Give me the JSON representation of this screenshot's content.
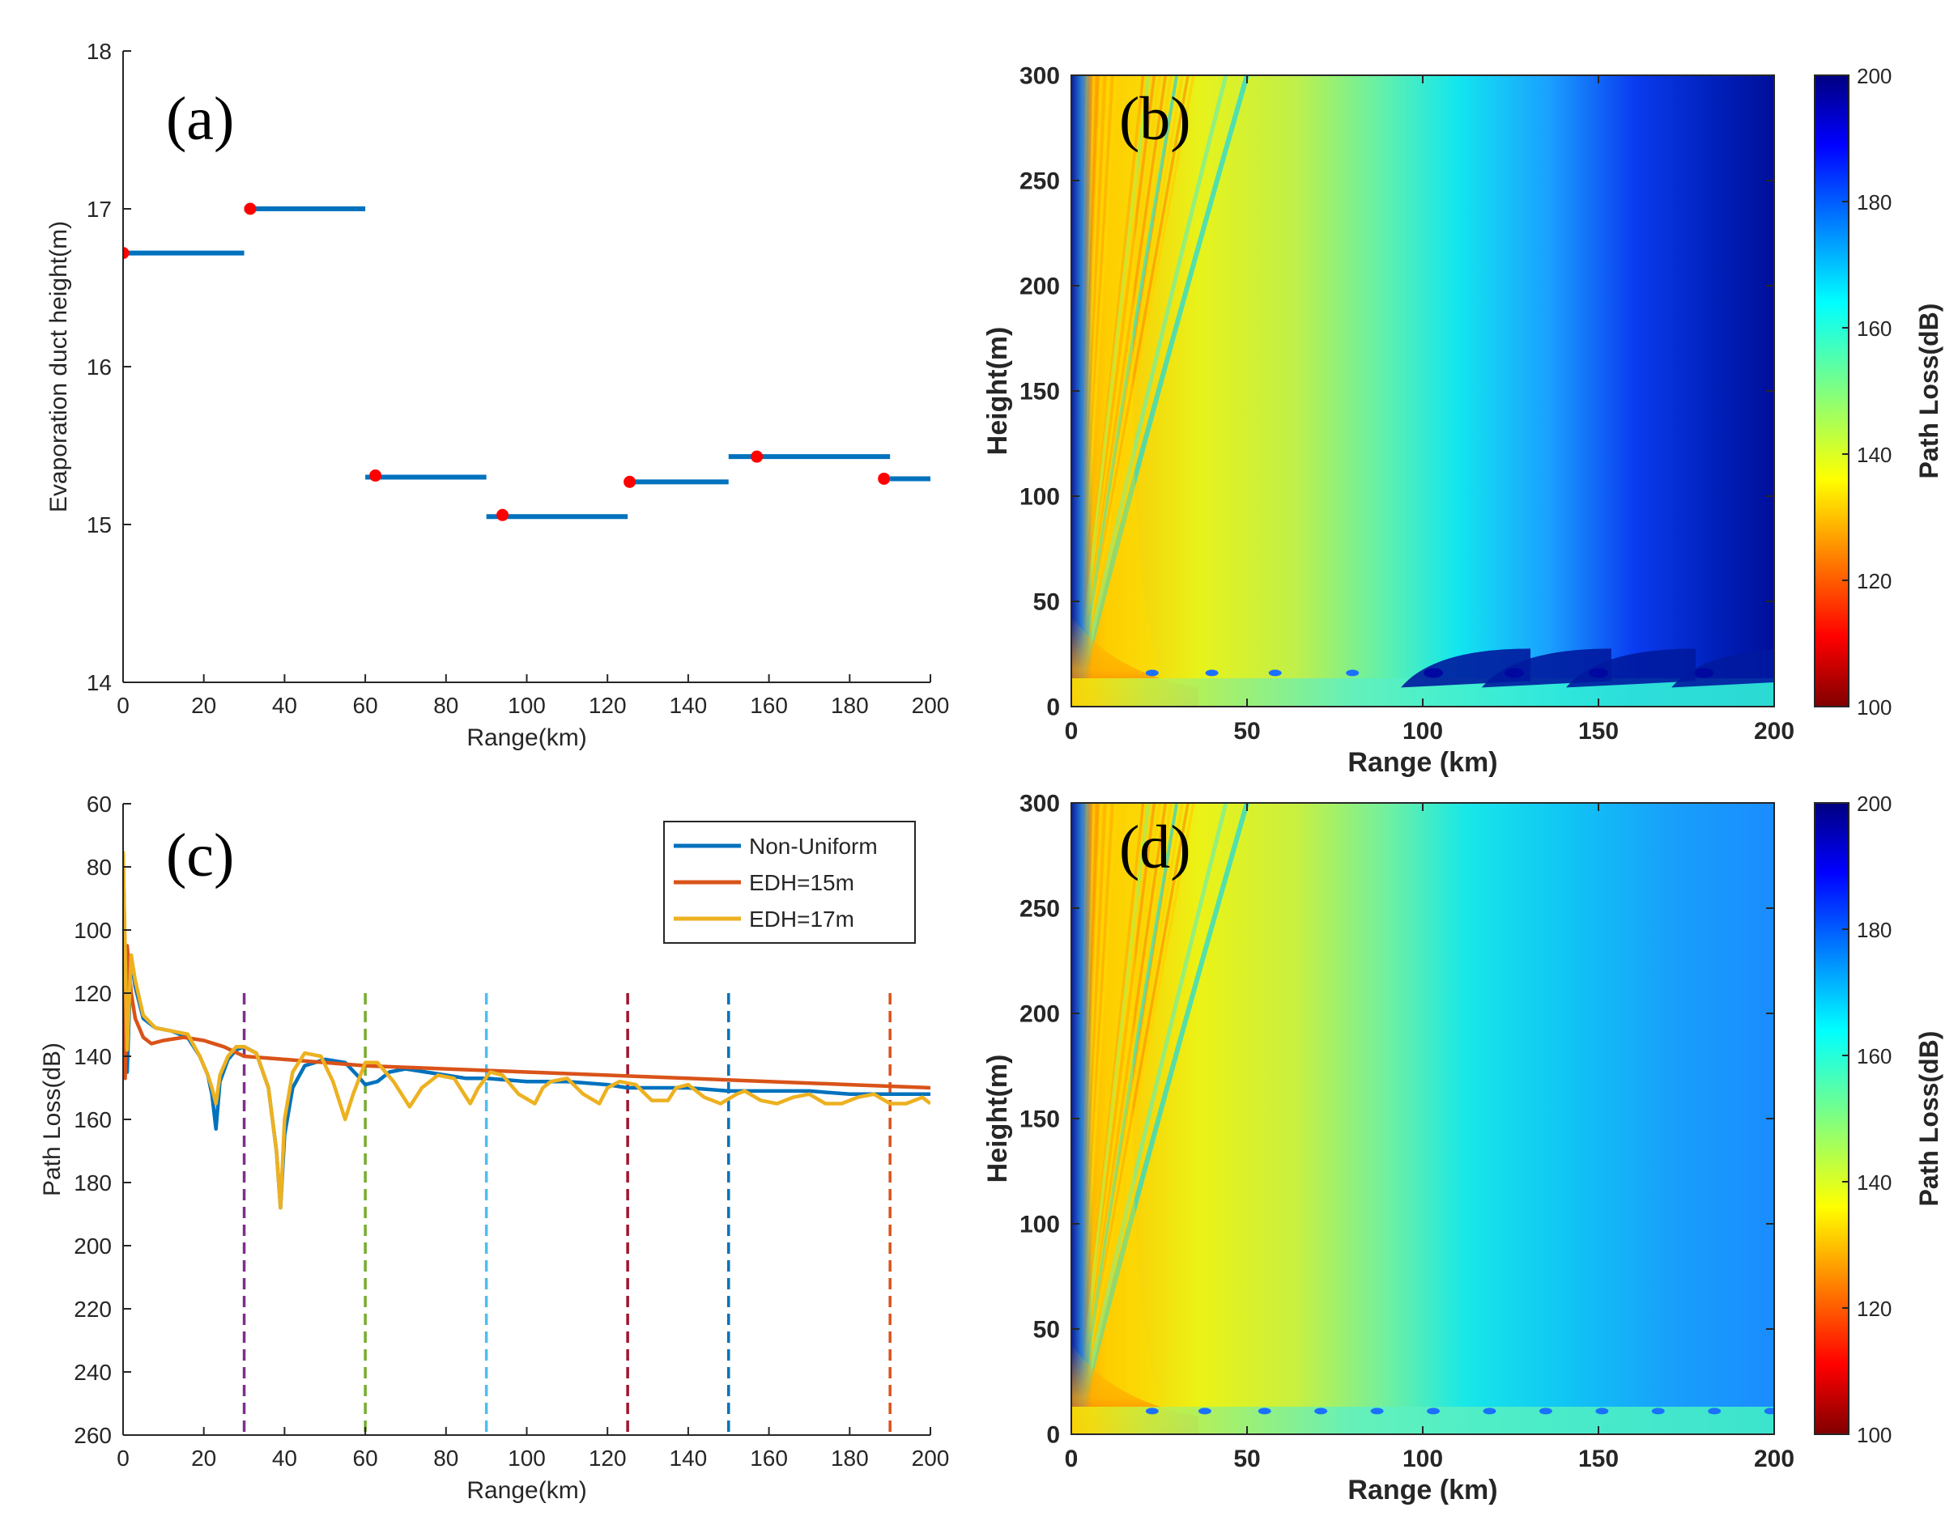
{
  "panels": {
    "a": "(a)",
    "b": "(b)",
    "c": "(c)",
    "d": "(d)"
  },
  "chart_data": [
    {
      "id": "a",
      "type": "line",
      "xlabel": "Range(km)",
      "ylabel": "Evaporation duct height(m)",
      "xlim": [
        0,
        200
      ],
      "ylim": [
        14,
        18
      ],
      "xticks": [
        0,
        20,
        40,
        60,
        80,
        100,
        120,
        140,
        160,
        180,
        200
      ],
      "yticks": [
        14,
        15,
        16,
        17,
        18
      ],
      "line_color": "#0072BD",
      "marker_color": "#FF0000",
      "segments": [
        {
          "x0": 0,
          "x1": 30,
          "y": 16.72
        },
        {
          "x0": 30,
          "x1": 60,
          "y": 17.0
        },
        {
          "x0": 60,
          "x1": 90,
          "y": 15.3
        },
        {
          "x0": 90,
          "x1": 125,
          "y": 15.05
        },
        {
          "x0": 125,
          "x1": 150,
          "y": 15.27
        },
        {
          "x0": 150,
          "x1": 190,
          "y": 15.43
        },
        {
          "x0": 190,
          "x1": 200,
          "y": 15.29
        }
      ],
      "points": [
        {
          "x": 0,
          "y": 16.72
        },
        {
          "x": 31.5,
          "y": 17.0
        },
        {
          "x": 62.5,
          "y": 15.31
        },
        {
          "x": 94,
          "y": 15.06
        },
        {
          "x": 125.5,
          "y": 15.27
        },
        {
          "x": 157,
          "y": 15.43
        },
        {
          "x": 188.5,
          "y": 15.29
        }
      ]
    },
    {
      "id": "b",
      "type": "heatmap",
      "xlabel": "Range (km)",
      "ylabel": "Height(m)",
      "xlim": [
        0,
        200
      ],
      "ylim": [
        0,
        300
      ],
      "xticks": [
        0,
        50,
        100,
        150,
        200
      ],
      "yticks": [
        0,
        50,
        100,
        150,
        200,
        250,
        300
      ],
      "colorbar": {
        "label": "Path Loss(dB)",
        "range": [
          100,
          200
        ],
        "ticks": [
          100,
          120,
          140,
          160,
          180,
          200
        ],
        "colormap": "jet-reversed"
      },
      "hot_spots_x": [
        23,
        40,
        58,
        80,
        103,
        126,
        150,
        180
      ]
    },
    {
      "id": "c",
      "type": "line",
      "xlabel": "Range(km)",
      "ylabel": "Path Loss(dB)",
      "xlim": [
        0,
        200
      ],
      "ylim": [
        260,
        60
      ],
      "xticks": [
        0,
        20,
        40,
        60,
        80,
        100,
        120,
        140,
        160,
        180,
        200
      ],
      "yticks": [
        60,
        80,
        100,
        120,
        140,
        160,
        180,
        200,
        220,
        240,
        260
      ],
      "legend": {
        "position": "top-right"
      },
      "series": [
        {
          "name": "Non-Uniform",
          "color": "#0072BD",
          "x": [
            0,
            1,
            2,
            3,
            5,
            8,
            12,
            16,
            19,
            21,
            22,
            23,
            24,
            26,
            28,
            30,
            33,
            36,
            38,
            39,
            40,
            42,
            45,
            50,
            55,
            58,
            60,
            63,
            66,
            70,
            75,
            80,
            85,
            90,
            100,
            110,
            120,
            125,
            130,
            140,
            150,
            160,
            170,
            180,
            190,
            200
          ],
          "y": [
            76,
            145,
            108,
            118,
            128,
            131,
            132,
            134,
            140,
            146,
            152,
            163,
            148,
            141,
            138,
            137,
            139,
            150,
            170,
            188,
            165,
            150,
            143,
            141,
            142,
            146,
            149,
            148,
            145,
            144,
            145,
            146,
            147,
            147,
            148,
            148,
            149,
            150,
            150,
            150,
            151,
            151,
            151,
            152,
            152,
            152
          ]
        },
        {
          "name": "EDH=15m",
          "color": "#D95319",
          "x": [
            0,
            0.5,
            1,
            2,
            3,
            5,
            7,
            10,
            15,
            20,
            25,
            30,
            40,
            50,
            60,
            80,
            100,
            120,
            140,
            160,
            180,
            200
          ],
          "y": [
            95,
            147,
            105,
            120,
            128,
            134,
            136,
            135,
            134,
            135,
            137,
            140,
            141,
            142,
            143,
            144,
            145,
            146,
            147,
            148,
            149,
            150
          ]
        },
        {
          "name": "EDH=17m",
          "color": "#EDB120",
          "x": [
            0,
            1,
            2,
            3,
            5,
            8,
            12,
            16,
            19,
            21,
            22,
            23,
            24,
            26,
            28,
            30,
            33,
            36,
            38,
            39,
            40,
            42,
            45,
            49,
            52,
            55,
            57,
            60,
            63,
            67,
            71,
            74,
            78,
            82,
            86,
            88,
            91,
            94,
            98,
            102,
            104,
            106,
            110,
            114,
            118,
            120,
            123,
            127,
            131,
            135,
            137,
            140,
            144,
            148,
            152,
            154,
            158,
            162,
            166,
            170,
            174,
            178,
            182,
            186,
            190,
            194,
            198,
            200
          ],
          "y": [
            75,
            138,
            108,
            116,
            127,
            131,
            132,
            133,
            140,
            146,
            150,
            155,
            146,
            140,
            137,
            137,
            139,
            150,
            170,
            188,
            160,
            145,
            139,
            140,
            148,
            160,
            152,
            142,
            142,
            148,
            156,
            150,
            146,
            147,
            155,
            150,
            145,
            146,
            152,
            155,
            150,
            148,
            147,
            152,
            155,
            150,
            148,
            149,
            154,
            154,
            150,
            149,
            153,
            155,
            152,
            151,
            154,
            155,
            153,
            152,
            155,
            155,
            153,
            152,
            155,
            155,
            153,
            155
          ]
        }
      ],
      "vlines": [
        {
          "x": 30,
          "color": "#7E2F8E"
        },
        {
          "x": 60,
          "color": "#77AC30"
        },
        {
          "x": 90,
          "color": "#4DBEEE"
        },
        {
          "x": 125,
          "color": "#A2142F"
        },
        {
          "x": 150,
          "color": "#0072BD"
        },
        {
          "x": 190,
          "color": "#D95319"
        }
      ]
    },
    {
      "id": "d",
      "type": "heatmap",
      "xlabel": "Range (km)",
      "ylabel": "Height(m)",
      "xlim": [
        0,
        200
      ],
      "ylim": [
        0,
        300
      ],
      "xticks": [
        0,
        50,
        100,
        150,
        200
      ],
      "yticks": [
        0,
        50,
        100,
        150,
        200,
        250,
        300
      ],
      "colorbar": {
        "label": "Path Loss(dB)",
        "range": [
          100,
          200
        ],
        "ticks": [
          100,
          120,
          140,
          160,
          180,
          200
        ],
        "colormap": "jet-reversed"
      },
      "hot_spots_x": [
        23,
        38,
        55,
        71,
        87,
        103,
        119,
        135,
        151,
        167,
        183,
        199
      ]
    }
  ]
}
